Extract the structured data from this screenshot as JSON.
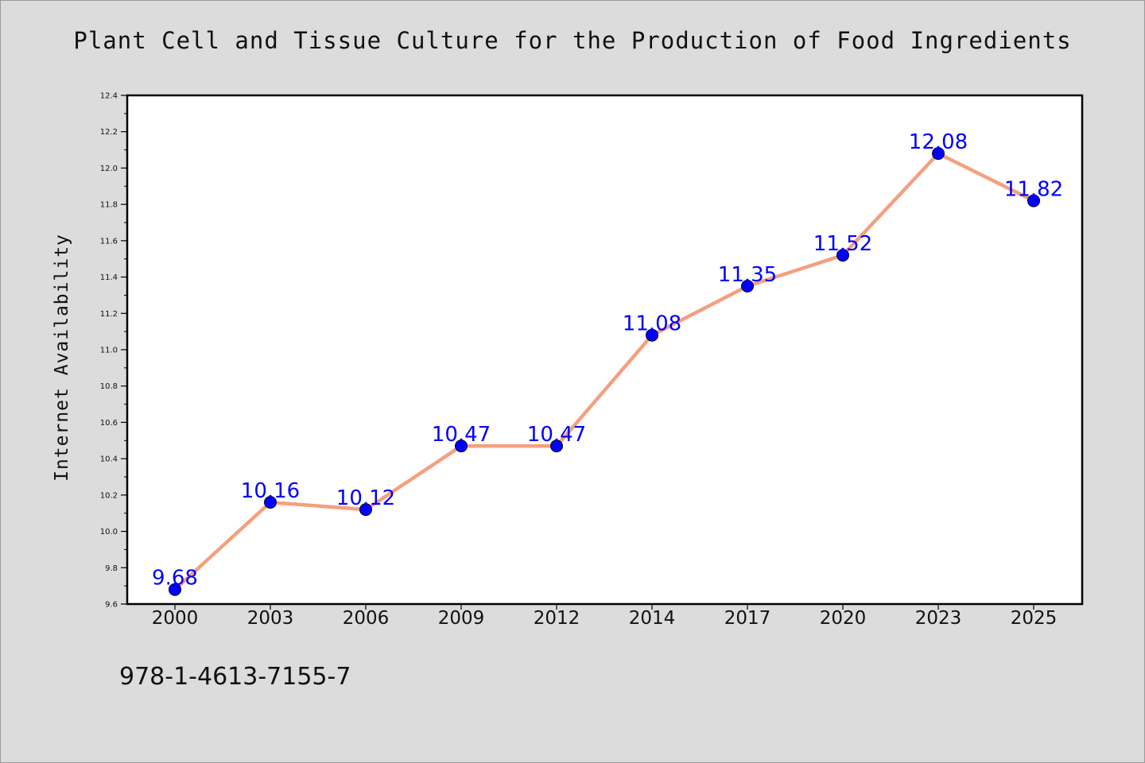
{
  "chart_data": {
    "type": "line",
    "title": "Plant Cell and Tissue Culture for the Production of Food Ingredients",
    "ylabel": "Internet Availability",
    "xlabel": "",
    "categories": [
      "2000",
      "2003",
      "2006",
      "2009",
      "2012",
      "2014",
      "2017",
      "2020",
      "2023",
      "2025"
    ],
    "series": [
      {
        "values": [
          9.68,
          10.16,
          10.12,
          10.47,
          10.47,
          11.08,
          11.35,
          11.52,
          12.08,
          11.82
        ]
      }
    ],
    "data_labels": [
      "9.68",
      "10.16",
      "10.12",
      "10.47",
      "10.47",
      "11.08",
      "11.35",
      "11.52",
      "12.08",
      "11.82"
    ],
    "ylim": [
      9.6,
      12.4
    ],
    "yticks": [
      "9.6",
      "9.8",
      "10.0",
      "10.2",
      "10.4",
      "10.6",
      "10.8",
      "11.0",
      "11.2",
      "11.4",
      "11.6",
      "11.8",
      "12.0",
      "12.2",
      "12.4"
    ],
    "grid": false,
    "colors": {
      "line": "#f4a07e",
      "marker": "#0000ff",
      "label": "#0000ff",
      "background": "#dcdcdc"
    }
  },
  "footer": {
    "isbn": "978-1-4613-7155-7"
  }
}
